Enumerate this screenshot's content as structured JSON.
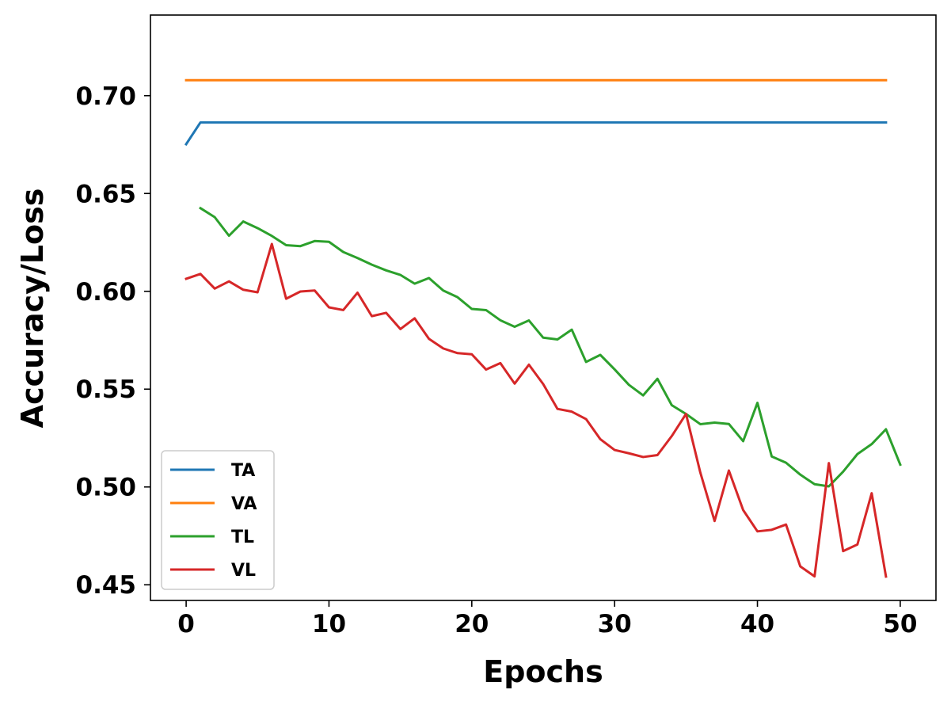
{
  "chart_data": {
    "type": "line",
    "title": "",
    "xlabel": "Epochs",
    "ylabel": "Accuracy/Loss",
    "xlim": [
      -2.5,
      52.5
    ],
    "ylim": [
      0.442,
      0.7412
    ],
    "xticks": [
      0,
      10,
      20,
      30,
      40,
      50
    ],
    "yticks": [
      0.45,
      0.5,
      0.55,
      0.6,
      0.65,
      0.7
    ],
    "ytick_labels": [
      "0.45",
      "0.50",
      "0.55",
      "0.60",
      "0.65",
      "0.70"
    ],
    "xtick_labels": [
      "0",
      "10",
      "20",
      "30",
      "40",
      "50"
    ],
    "grid": false,
    "legend_position": "lower-left",
    "series": [
      {
        "name": "TA",
        "color": "#1f77b4",
        "x": [
          0,
          1,
          49
        ],
        "y": [
          0.6752,
          0.6863,
          0.6863
        ]
      },
      {
        "name": "VA",
        "color": "#ff7f0e",
        "x": [
          0,
          49
        ],
        "y": [
          0.7079,
          0.7079
        ]
      },
      {
        "name": "TL",
        "color": "#2ca02c",
        "x": [
          1,
          2,
          3,
          4,
          5,
          6,
          7,
          8,
          9,
          10,
          11,
          12,
          13,
          14,
          15,
          16,
          17,
          18,
          19,
          20,
          21,
          22,
          23,
          24,
          25,
          26,
          27,
          28,
          29,
          30,
          31,
          32,
          33,
          34,
          35,
          36,
          37,
          38,
          39,
          40,
          41,
          42,
          43,
          44,
          45,
          46,
          47,
          48,
          49,
          50
        ],
        "y": [
          0.6425,
          0.6379,
          0.6284,
          0.6357,
          0.6323,
          0.6283,
          0.6236,
          0.6231,
          0.6257,
          0.6253,
          0.6201,
          0.617,
          0.6136,
          0.6107,
          0.6084,
          0.6039,
          0.6068,
          0.6004,
          0.597,
          0.591,
          0.5904,
          0.5852,
          0.5819,
          0.5851,
          0.5763,
          0.5754,
          0.5804,
          0.5639,
          0.5675,
          0.5601,
          0.5522,
          0.5468,
          0.5553,
          0.5418,
          0.5373,
          0.5321,
          0.5329,
          0.5322,
          0.5234,
          0.543,
          0.5156,
          0.5124,
          0.5063,
          0.5014,
          0.5003,
          0.5078,
          0.5168,
          0.5219,
          0.5295,
          0.5114
        ]
      },
      {
        "name": "VL",
        "color": "#d62728",
        "x": [
          0,
          1,
          2,
          3,
          4,
          5,
          6,
          7,
          8,
          9,
          10,
          11,
          12,
          13,
          14,
          15,
          16,
          17,
          18,
          19,
          20,
          21,
          22,
          23,
          24,
          25,
          26,
          27,
          28,
          29,
          30,
          31,
          32,
          33,
          34,
          35,
          36,
          37,
          38,
          39,
          40,
          41,
          42,
          43,
          44,
          45,
          46,
          47,
          48,
          49
        ],
        "y": [
          0.6064,
          0.6089,
          0.6014,
          0.6051,
          0.6008,
          0.5995,
          0.6242,
          0.5962,
          0.5999,
          0.6004,
          0.5918,
          0.5904,
          0.5993,
          0.5873,
          0.589,
          0.5807,
          0.5862,
          0.5757,
          0.5708,
          0.5684,
          0.5678,
          0.56,
          0.5633,
          0.5528,
          0.5625,
          0.5526,
          0.5399,
          0.5385,
          0.5347,
          0.5244,
          0.5189,
          0.5172,
          0.5153,
          0.5163,
          0.526,
          0.5373,
          0.5074,
          0.4826,
          0.5084,
          0.4882,
          0.4773,
          0.4781,
          0.4808,
          0.4594,
          0.4543,
          0.5122,
          0.4672,
          0.4706,
          0.4968,
          0.4542
        ]
      }
    ]
  }
}
